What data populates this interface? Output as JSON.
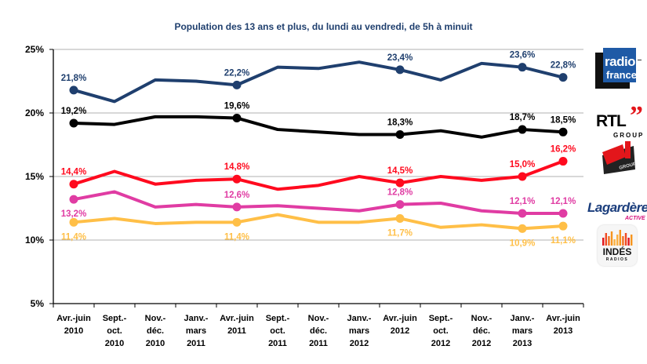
{
  "chart_data": {
    "type": "line",
    "title": "Population des 13 ans et plus, du lundi au vendredi, de 5h à minuit",
    "xlabel": "",
    "ylabel": "",
    "ylim": [
      5,
      25
    ],
    "yticks": [
      25,
      20,
      15,
      10,
      5
    ],
    "ytick_labels": [
      "25%",
      "20%",
      "15%",
      "10%",
      "5%"
    ],
    "grid": true,
    "categories": [
      [
        "Avr.-juin",
        "2010"
      ],
      [
        "Sept.-",
        "oct.",
        "2010"
      ],
      [
        "Nov.-",
        "déc.",
        "2010"
      ],
      [
        "Janv.-",
        "mars",
        "2011"
      ],
      [
        "Avr.-juin",
        "2011"
      ],
      [
        "Sept.-",
        "oct.",
        "2011"
      ],
      [
        "Nov.-",
        "déc.",
        "2011"
      ],
      [
        "Janv.-",
        "mars",
        "2012"
      ],
      [
        "Avr.-juin",
        "2012"
      ],
      [
        "Sept.-",
        "oct.",
        "2012"
      ],
      [
        "Nov.-",
        "déc.",
        "2012"
      ],
      [
        "Janv.-",
        "mars",
        "2013"
      ],
      [
        "Avr.-juin",
        "2013"
      ]
    ],
    "series": [
      {
        "name": "Radio France",
        "color": "#1f3f6e",
        "values": [
          21.8,
          20.9,
          22.6,
          22.5,
          22.2,
          23.6,
          23.5,
          24.0,
          23.4,
          22.6,
          23.9,
          23.6,
          22.8
        ],
        "marked_points": [
          0,
          4,
          8,
          11,
          12
        ],
        "labels": [
          "21,8%",
          "22,2%",
          "23,4%",
          "23,6%",
          "22,8%"
        ],
        "label_position": "above"
      },
      {
        "name": "RTL Group",
        "color": "#000000",
        "values": [
          19.2,
          19.1,
          19.7,
          19.7,
          19.6,
          18.7,
          18.5,
          18.3,
          18.3,
          18.6,
          18.1,
          18.7,
          18.5
        ],
        "marked_points": [
          0,
          4,
          8,
          11,
          12
        ],
        "labels": [
          "19,2%",
          "19,6%",
          "18,3%",
          "18,7%",
          "18,5%"
        ],
        "label_position": "above"
      },
      {
        "name": "NRJ Group",
        "color": "#ff0a1e",
        "values": [
          14.4,
          15.4,
          14.4,
          14.7,
          14.8,
          14.0,
          14.3,
          15.0,
          14.5,
          15.0,
          14.7,
          15.0,
          16.2
        ],
        "marked_points": [
          0,
          4,
          8,
          11,
          12
        ],
        "labels": [
          "14,4%",
          "14,8%",
          "14,5%",
          "15,0%",
          "16,2%"
        ],
        "label_position": "above"
      },
      {
        "name": "Lagardère Active",
        "color": "#e03ca3",
        "values": [
          13.2,
          13.8,
          12.6,
          12.8,
          12.6,
          12.7,
          12.5,
          12.3,
          12.8,
          12.9,
          12.3,
          12.1,
          12.1
        ],
        "marked_points": [
          0,
          4,
          8,
          11,
          12
        ],
        "labels": [
          "13,2%",
          "12,6%",
          "12,8%",
          "12,1%",
          "12,1%"
        ],
        "label_position": [
          "below",
          "above",
          "above",
          "above",
          "above"
        ]
      },
      {
        "name": "Les Indés Radios",
        "color": "#ffbf47",
        "values": [
          11.4,
          11.7,
          11.3,
          11.4,
          11.4,
          12.0,
          11.4,
          11.4,
          11.7,
          11.0,
          11.2,
          10.9,
          11.1
        ],
        "marked_points": [
          0,
          4,
          8,
          11,
          12
        ],
        "labels": [
          "11,4%",
          "11,4%",
          "11,7%",
          "10,9%",
          "11,1%"
        ],
        "label_position": "below"
      }
    ]
  },
  "logos": {
    "radio_france": {
      "line1": "radio",
      "line2": "france"
    },
    "rtl": {
      "line1": "RTL",
      "quote": "”",
      "line2": "GROUP"
    },
    "nrj": {
      "line1": "NRJ",
      "line2": "GROUP"
    },
    "lagardere": {
      "line1": "Lagardère",
      "line2": "ACTIVE"
    },
    "indes": {
      "line1": "INDÉS",
      "line2": "RADIOS",
      "prefix": "LES"
    }
  }
}
